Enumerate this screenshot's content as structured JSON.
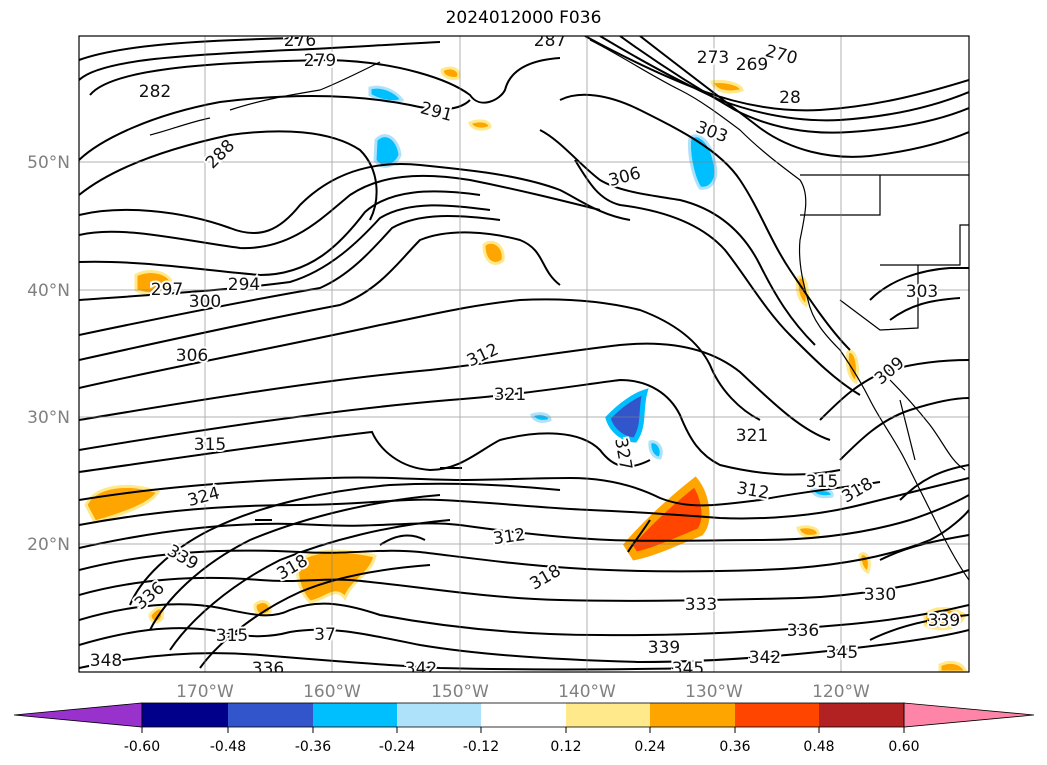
{
  "title": "2024012000 F036",
  "lat_labels": [
    "50°N",
    "40°N",
    "30°N",
    "20°N"
  ],
  "lon_labels": [
    "170°W",
    "160°W",
    "150°W",
    "140°W",
    "130°W",
    "120°W"
  ],
  "contour_labels": [
    "276",
    "279",
    "282",
    "287",
    "270",
    "273",
    "269",
    "28",
    "291",
    "288",
    "303",
    "306",
    "297",
    "294",
    "300",
    "303",
    "309",
    "312",
    "306",
    "321",
    "327",
    "321",
    "315",
    "315",
    "324",
    "318",
    "312",
    "318",
    "339",
    "336",
    "318",
    "37",
    "312",
    "333",
    "330",
    "336",
    "339",
    "315",
    "348",
    "342",
    "336",
    "339",
    "345",
    "342",
    "345"
  ],
  "colorbar": {
    "ticks": [
      "-0.60",
      "-0.48",
      "-0.36",
      "-0.24",
      "-0.12",
      "0.12",
      "0.24",
      "0.36",
      "0.48",
      "0.60"
    ],
    "colors": [
      "#9932CC",
      "#00008B",
      "#3355CC",
      "#00BFFF",
      "#AEE2FA",
      "#FFFFFF",
      "#FFE98A",
      "#FFA500",
      "#FF4500",
      "#B22222",
      "#FF85A8"
    ]
  },
  "shading_colors": {
    "light_blue": "#AEE2FA",
    "blue": "#00BFFF",
    "dark_blue": "#3355CC",
    "light_orange": "#FFE98A",
    "orange": "#FFA500",
    "red_orange": "#FF4500"
  }
}
